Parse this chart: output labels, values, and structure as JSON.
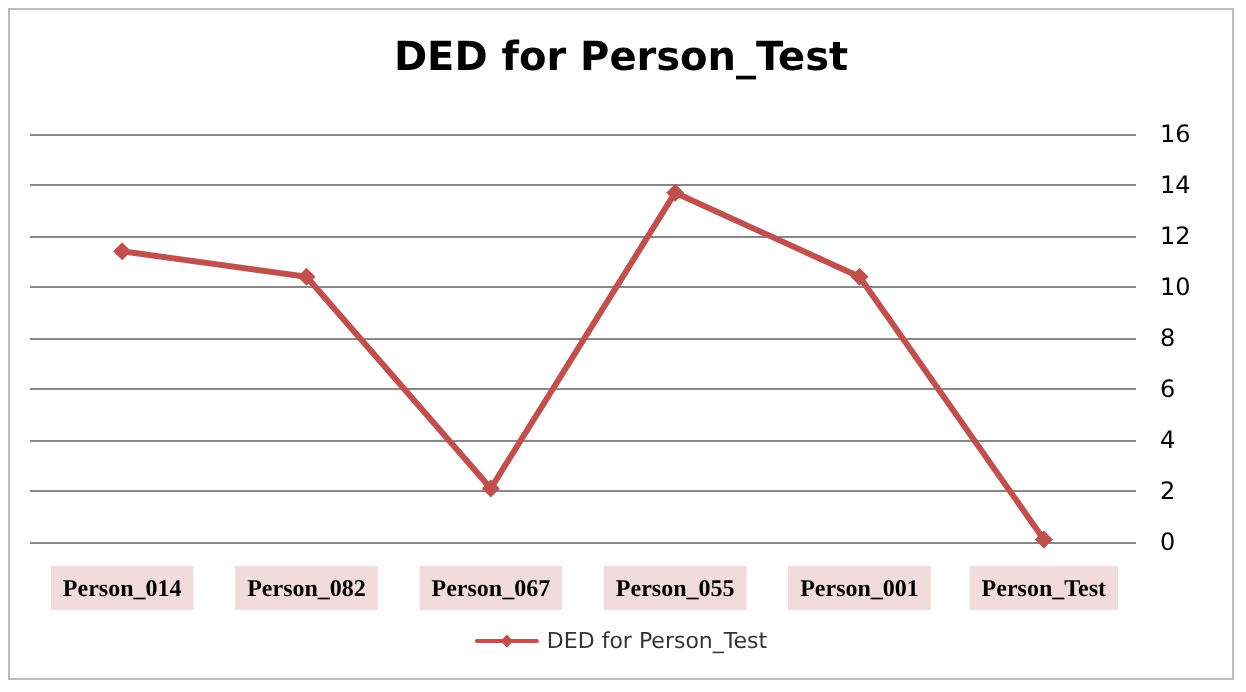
{
  "chart_data": {
    "type": "line",
    "title": "DED for Person_Test",
    "categories": [
      "Person_014",
      "Person_082",
      "Person_067",
      "Person_055",
      "Person_001",
      "Person_Test"
    ],
    "series": [
      {
        "name": "DED for Person_Test",
        "color": "#c0504d",
        "values": [
          11.4,
          10.4,
          2.1,
          13.7,
          10.4,
          0.1
        ]
      }
    ],
    "ylim": [
      0,
      16
    ],
    "yticks": [
      0,
      2,
      4,
      6,
      8,
      10,
      12,
      14,
      16
    ],
    "grid": "y",
    "legend": "bottom",
    "marker": "diamond",
    "line_style": "solid"
  }
}
